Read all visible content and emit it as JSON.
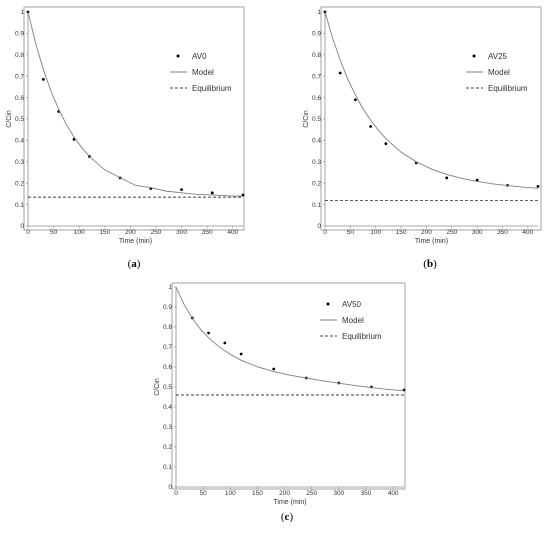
{
  "chart_data": [
    {
      "type": "scatter",
      "panel_label": "a",
      "xlabel": "Time (min)",
      "ylabel": "C/Cin",
      "xlim": [
        0,
        420
      ],
      "ylim": [
        0,
        1
      ],
      "xticks": [
        0,
        50,
        100,
        150,
        200,
        250,
        300,
        350,
        400
      ],
      "yticks": [
        0,
        0.1,
        0.2,
        0.3,
        0.4,
        0.5,
        0.6,
        0.7,
        0.8,
        0.9,
        1
      ],
      "xtick_labels": [
        "0",
        "50",
        "100",
        "150",
        "200",
        "250",
        "300",
        "350",
        "400"
      ],
      "ytick_labels": [
        "0",
        "0.1",
        "0.2",
        "0.3",
        "0.4",
        "0.5",
        "0.6",
        "0.7",
        "0.8",
        "0.9",
        "1"
      ],
      "grid": false,
      "legend_position": "top-right",
      "series": [
        {
          "name": "AV0",
          "kind": "points",
          "x": [
            0,
            30,
            60,
            90,
            120,
            180,
            240,
            300,
            360,
            420
          ],
          "y": [
            1.0,
            0.685,
            0.535,
            0.405,
            0.325,
            0.225,
            0.175,
            0.17,
            0.155,
            0.145
          ]
        },
        {
          "name": "Model",
          "kind": "curve",
          "equilibrium": 0.135,
          "rate": 0.0125,
          "x": [
            0,
            15,
            30,
            45,
            60,
            75,
            90,
            105,
            120,
            150,
            180,
            210,
            240,
            270,
            300,
            330,
            360,
            390,
            420
          ],
          "y": [
            1.0,
            0.853,
            0.731,
            0.629,
            0.545,
            0.474,
            0.415,
            0.366,
            0.325,
            0.262,
            0.226,
            0.19,
            0.179,
            0.163,
            0.155,
            0.148,
            0.145,
            0.141,
            0.139
          ]
        },
        {
          "name": "Equilibrium",
          "kind": "hline",
          "y": 0.135
        }
      ]
    },
    {
      "type": "scatter",
      "panel_label": "b",
      "xlabel": "Time (min)",
      "ylabel": "C/Cin",
      "xlim": [
        0,
        420
      ],
      "ylim": [
        0,
        1
      ],
      "xticks": [
        0,
        50,
        100,
        150,
        200,
        250,
        300,
        350,
        400
      ],
      "yticks": [
        0,
        0.1,
        0.2,
        0.3,
        0.4,
        0.5,
        0.6,
        0.7,
        0.8,
        0.9,
        1
      ],
      "xtick_labels": [
        "0",
        "50",
        "100",
        "150",
        "200",
        "250",
        "300",
        "350",
        "400"
      ],
      "ytick_labels": [
        "0",
        "0.1",
        "0.2",
        "0.3",
        "0.4",
        "0.5",
        "0.6",
        "0.7",
        "0.8",
        "0.9",
        "1"
      ],
      "grid": false,
      "legend_position": "top-right",
      "series": [
        {
          "name": "AV25",
          "kind": "points",
          "x": [
            0,
            30,
            60,
            90,
            120,
            180,
            240,
            300,
            360,
            420
          ],
          "y": [
            1.0,
            0.715,
            0.59,
            0.465,
            0.385,
            0.295,
            0.225,
            0.215,
            0.19,
            0.185
          ]
        },
        {
          "name": "Model",
          "kind": "curve",
          "equilibrium": 0.12,
          "x": [
            0,
            15,
            30,
            45,
            60,
            75,
            90,
            105,
            120,
            150,
            180,
            210,
            240,
            270,
            300,
            330,
            360,
            390,
            420
          ],
          "y": [
            1.0,
            0.878,
            0.775,
            0.686,
            0.612,
            0.548,
            0.494,
            0.448,
            0.408,
            0.345,
            0.3,
            0.266,
            0.241,
            0.222,
            0.208,
            0.197,
            0.189,
            0.182,
            0.176
          ]
        },
        {
          "name": "Equilibrium",
          "kind": "hline",
          "y": 0.12
        }
      ]
    },
    {
      "type": "scatter",
      "panel_label": "c",
      "xlabel": "Time (min)",
      "ylabel": "C/Cin",
      "xlim": [
        0,
        420
      ],
      "ylim": [
        0,
        1
      ],
      "xticks": [
        0,
        50,
        100,
        150,
        200,
        250,
        300,
        350,
        400
      ],
      "yticks": [
        0,
        0.1,
        0.2,
        0.3,
        0.4,
        0.5,
        0.6,
        0.7,
        0.8,
        0.9,
        1
      ],
      "xtick_labels": [
        "0",
        "50",
        "100",
        "150",
        "200",
        "250",
        "300",
        "350",
        "400"
      ],
      "ytick_labels": [
        "0",
        "0.1",
        "0.2",
        "0.3",
        "0.4",
        "0.5",
        "0.6",
        "0.7",
        "0.8",
        "0.9",
        "1"
      ],
      "grid": false,
      "legend_position": "top-right",
      "series": [
        {
          "name": "AV50",
          "kind": "points",
          "x": [
            30,
            60,
            90,
            120,
            180,
            240,
            300,
            360,
            420
          ],
          "y": [
            0.845,
            0.77,
            0.72,
            0.665,
            0.59,
            0.545,
            0.52,
            0.5,
            0.485
          ]
        },
        {
          "name": "Model",
          "kind": "curve",
          "equilibrium": 0.46,
          "x": [
            0,
            15,
            30,
            45,
            60,
            75,
            90,
            105,
            120,
            150,
            180,
            210,
            240,
            270,
            300,
            330,
            360,
            390,
            420
          ],
          "y": [
            1.0,
            0.912,
            0.843,
            0.789,
            0.746,
            0.711,
            0.681,
            0.656,
            0.634,
            0.601,
            0.577,
            0.559,
            0.545,
            0.531,
            0.519,
            0.507,
            0.497,
            0.488,
            0.481
          ]
        },
        {
          "name": "Equilibrium",
          "kind": "hline",
          "y": 0.46
        }
      ]
    }
  ]
}
